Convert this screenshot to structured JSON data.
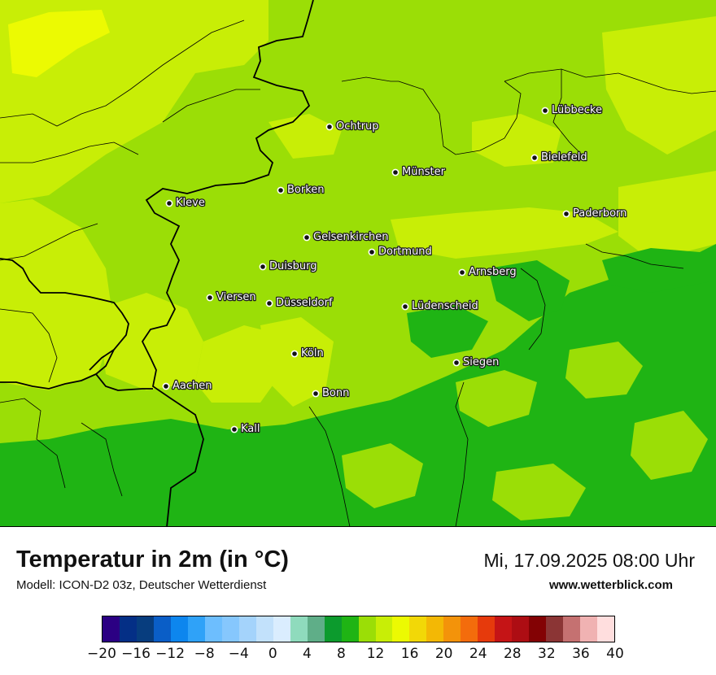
{
  "map": {
    "cities": [
      {
        "name": "Ochtrup"
      },
      {
        "name": "Lübbecke"
      },
      {
        "name": "Bielefeld"
      },
      {
        "name": "Münster"
      },
      {
        "name": "Borken"
      },
      {
        "name": "Kleve"
      },
      {
        "name": "Paderborn"
      },
      {
        "name": "Gelsenkirchen"
      },
      {
        "name": "Dortmund"
      },
      {
        "name": "Duisburg"
      },
      {
        "name": "Arnsberg"
      },
      {
        "name": "Viersen"
      },
      {
        "name": "Düsseldorf"
      },
      {
        "name": "Lüdenscheid"
      },
      {
        "name": "Köln"
      },
      {
        "name": "Siegen"
      },
      {
        "name": "Aachen"
      },
      {
        "name": "Bonn"
      },
      {
        "name": "Kall"
      }
    ],
    "colors": {
      "temp_10_12": "#9bde06",
      "temp_12_14": "#c8ee06",
      "temp_14_16": "#ecfa02",
      "temp_8_10": "#1fb414",
      "border": "#000000"
    }
  },
  "footer": {
    "title": "Temperatur in 2m (in °C)",
    "model": "Modell: ICON-D2 03z, Deutscher Wetterdienst",
    "datetime": "Mi, 17.09.2025 08:00 Uhr",
    "website": "www.wetterblick.com"
  },
  "legend": {
    "colors": [
      "#2b0083",
      "#042f86",
      "#073d7e",
      "#0a5ec7",
      "#0d86ee",
      "#2fa2f8",
      "#6dbefe",
      "#86c7fd",
      "#a4d3fb",
      "#c2e1fb",
      "#daedfe",
      "#8fdbbd",
      "#5fae88",
      "#0c9b2d",
      "#1fb414",
      "#9bde06",
      "#c8ee06",
      "#ecfa02",
      "#f2d807",
      "#f3b805",
      "#f3930a",
      "#f36c0c",
      "#e63a0c",
      "#c51416",
      "#ad0d13",
      "#830204",
      "#8b3535",
      "#c57171",
      "#f0b2b2",
      "#ffdede"
    ],
    "ticks": [
      "−20",
      "−16",
      "−12",
      "−8",
      "−4",
      "0",
      "4",
      "8",
      "12",
      "16",
      "20",
      "24",
      "28",
      "32",
      "36",
      "40"
    ]
  }
}
